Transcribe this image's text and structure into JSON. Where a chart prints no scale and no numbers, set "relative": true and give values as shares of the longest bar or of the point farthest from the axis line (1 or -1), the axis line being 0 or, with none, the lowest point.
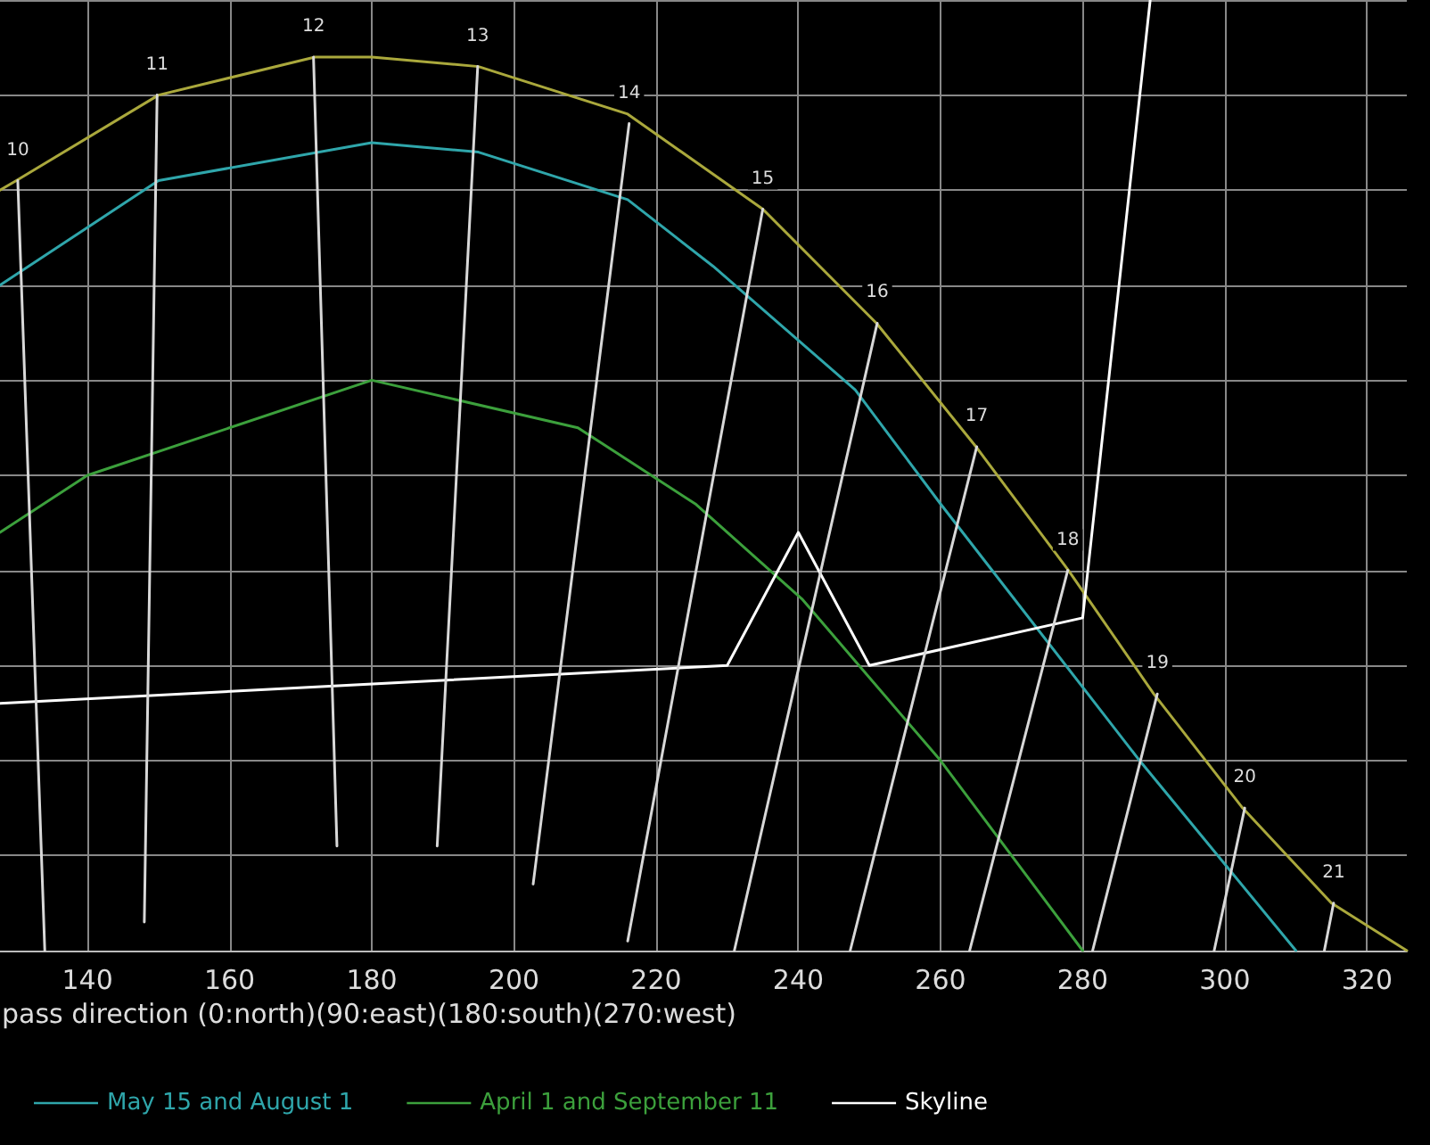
{
  "chart_data": {
    "type": "line",
    "relative": true,
    "xlabel": "pass direction (0:north)(90:east)(180:south)(270:west)",
    "xlim": [
      127.7,
      325.6
    ],
    "xticks": [
      140,
      160,
      180,
      200,
      220,
      240,
      260,
      280,
      300,
      320
    ],
    "grid": true,
    "legend": "bottom",
    "marker": "none",
    "line_style": "solid",
    "series": [
      {
        "color": "#aaa83c",
        "x": [
          127.7,
          130,
          150,
          172,
          180,
          195,
          216,
          235,
          251,
          265,
          278,
          290,
          302.5,
          315,
          325.6
        ],
        "values": [
          0.8,
          0.81,
          0.9,
          0.94,
          0.94,
          0.93,
          0.88,
          0.78,
          0.66,
          0.53,
          0.4,
          0.27,
          0.15,
          0.05,
          0
        ]
      },
      {
        "name": "May 15 and August 1",
        "color": "#2fa6ab",
        "x": [
          127.7,
          150,
          180,
          195,
          216,
          228,
          248,
          260,
          288,
          310
        ],
        "values": [
          0.7,
          0.81,
          0.85,
          0.84,
          0.79,
          0.72,
          0.59,
          0.47,
          0.2,
          0
        ]
      },
      {
        "name": "April 1 and September 11",
        "color": "#3ca03c",
        "x": [
          127.7,
          140,
          180,
          209,
          225.5,
          240.5,
          260,
          280
        ],
        "values": [
          0.44,
          0.5,
          0.6,
          0.55,
          0.47,
          0.37,
          0.2,
          0
        ]
      },
      {
        "name": "Skyline",
        "color": "#ffffff",
        "x": [
          127.7,
          230,
          240,
          250,
          280,
          289.5
        ],
        "values": [
          0.26,
          0.3,
          0.44,
          0.3,
          0.35,
          1
        ]
      },
      {
        "color": "#d8d8d8",
        "x": [
          130.2,
          134
        ],
        "values": [
          0.81,
          0
        ]
      },
      {
        "color": "#d8d8d8",
        "x": [
          149.8,
          148
        ],
        "values": [
          0.9,
          0.03
        ]
      },
      {
        "color": "#d8d8d8",
        "x": [
          171.8,
          175.1
        ],
        "values": [
          0.94,
          0.11
        ]
      },
      {
        "color": "#d8d8d8",
        "x": [
          194.9,
          189.2
        ],
        "values": [
          0.93,
          0.11
        ]
      },
      {
        "color": "#d8d8d8",
        "x": [
          216.2,
          202.7
        ],
        "values": [
          0.87,
          0.07
        ]
      },
      {
        "color": "#d8d8d8",
        "x": [
          235,
          216
        ],
        "values": [
          0.78,
          0.01
        ]
      },
      {
        "color": "#d8d8d8",
        "x": [
          251.1,
          231
        ],
        "values": [
          0.66,
          0
        ]
      },
      {
        "color": "#d8d8d8",
        "x": [
          265.1,
          247.3
        ],
        "values": [
          0.53,
          0
        ]
      },
      {
        "color": "#d8d8d8",
        "x": [
          277.9,
          264.1
        ],
        "values": [
          0.4,
          0
        ]
      },
      {
        "color": "#d8d8d8",
        "x": [
          290.5,
          281.4
        ],
        "values": [
          0.27,
          0
        ]
      },
      {
        "color": "#d8d8d8",
        "x": [
          302.8,
          298.5
        ],
        "values": [
          0.15,
          0
        ]
      },
      {
        "color": "#d8d8d8",
        "x": [
          315.3,
          314
        ],
        "values": [
          0.05,
          0
        ]
      }
    ],
    "annotations": [
      {
        "text": "10",
        "x": 130.2,
        "y": 0.81
      },
      {
        "text": "11",
        "x": 149.8,
        "y": 0.9
      },
      {
        "text": "12",
        "x": 171.8,
        "y": 0.94
      },
      {
        "text": "13",
        "x": 194.9,
        "y": 0.93
      },
      {
        "text": "14",
        "x": 216.2,
        "y": 0.87
      },
      {
        "text": "15",
        "x": 235,
        "y": 0.78
      },
      {
        "text": "16",
        "x": 251.1,
        "y": 0.66
      },
      {
        "text": "17",
        "x": 265.1,
        "y": 0.53
      },
      {
        "text": "18",
        "x": 277.9,
        "y": 0.4
      },
      {
        "text": "19",
        "x": 290.5,
        "y": 0.27
      },
      {
        "text": "20",
        "x": 302.8,
        "y": 0.15
      },
      {
        "text": "21",
        "x": 315.3,
        "y": 0.05
      }
    ]
  }
}
